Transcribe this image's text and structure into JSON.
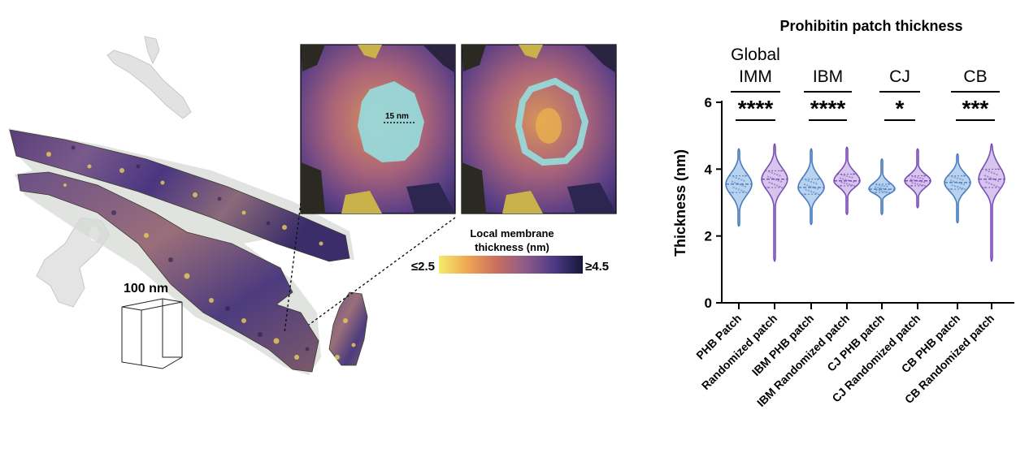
{
  "left_panel": {
    "scale_bar_label": "100 nm",
    "inset_distance_label": "15 nm",
    "colorbar": {
      "title_line1": "Local membrane",
      "title_line2": "thickness (nm)",
      "min_label": "≤2.5",
      "max_label": "≥4.5",
      "colors": [
        "#f3ec6a",
        "#f0a553",
        "#c8705e",
        "#8e5b8a",
        "#4e3a86",
        "#16183a"
      ]
    }
  },
  "chart_data": {
    "type": "violin",
    "title": "Prohibitin patch thickness",
    "ylabel": "Thickness (nm)",
    "ylim": [
      0,
      6
    ],
    "yticks": [
      0,
      2,
      4,
      6
    ],
    "categories": [
      "PHB Patch",
      "Randomized patch",
      "IBM PHB patch",
      "IBM Randomized patch",
      "CJ PHB patch",
      "CJ Randomized patch",
      "CB PHB patch",
      "CB Randomized patch"
    ],
    "groups": [
      {
        "label_lines": [
          "Global",
          "IMM"
        ],
        "significance": "****",
        "categories": [
          0,
          1
        ]
      },
      {
        "label_lines": [
          "IBM"
        ],
        "significance": "****",
        "categories": [
          2,
          3
        ]
      },
      {
        "label_lines": [
          "CJ"
        ],
        "significance": "*",
        "categories": [
          4,
          5
        ]
      },
      {
        "label_lines": [
          "CB"
        ],
        "significance": "***",
        "categories": [
          6,
          7
        ]
      }
    ],
    "series": [
      {
        "color": "#4a7cc0",
        "fill": "#b9d3ee",
        "min": 2.3,
        "q1": 3.3,
        "median": 3.55,
        "q3": 3.8,
        "max": 4.6
      },
      {
        "color": "#7a4fb5",
        "fill": "#d8c5ee",
        "min": 1.25,
        "q1": 3.45,
        "median": 3.7,
        "q3": 3.95,
        "max": 4.75
      },
      {
        "color": "#4a7cc0",
        "fill": "#b9d3ee",
        "min": 2.35,
        "q1": 3.25,
        "median": 3.45,
        "q3": 3.7,
        "max": 4.6
      },
      {
        "color": "#7a4fb5",
        "fill": "#d8c5ee",
        "min": 2.65,
        "q1": 3.5,
        "median": 3.65,
        "q3": 3.85,
        "max": 4.65
      },
      {
        "color": "#4a7cc0",
        "fill": "#b9d3ee",
        "min": 2.65,
        "q1": 3.3,
        "median": 3.4,
        "q3": 3.55,
        "max": 4.3
      },
      {
        "color": "#7a4fb5",
        "fill": "#d8c5ee",
        "min": 2.85,
        "q1": 3.5,
        "median": 3.65,
        "q3": 3.8,
        "max": 4.6
      },
      {
        "color": "#4a7cc0",
        "fill": "#b9d3ee",
        "min": 2.4,
        "q1": 3.4,
        "median": 3.6,
        "q3": 3.8,
        "max": 4.45
      },
      {
        "color": "#7a4fb5",
        "fill": "#d8c5ee",
        "min": 1.25,
        "q1": 3.45,
        "median": 3.7,
        "q3": 4.0,
        "max": 4.75
      }
    ]
  }
}
